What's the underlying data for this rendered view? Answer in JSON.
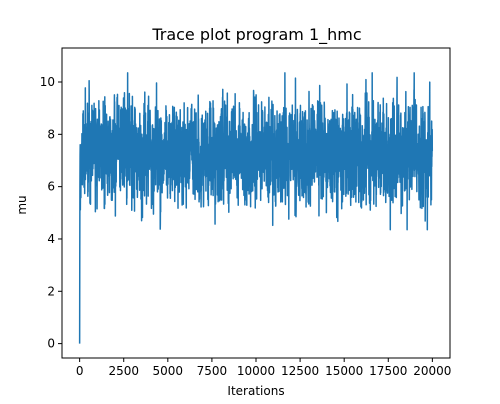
{
  "chart_data": {
    "type": "line",
    "title": "Trace plot program 1_hmc",
    "xlabel": "Iterations",
    "ylabel": "mu",
    "xlim": [
      -1000,
      21000
    ],
    "ylim": [
      -0.55,
      11.3
    ],
    "xticks": [
      0,
      2500,
      5000,
      7500,
      10000,
      12500,
      15000,
      17500,
      20000
    ],
    "xtick_labels": [
      "0",
      "2500",
      "5000",
      "7500",
      "10000",
      "12500",
      "15000",
      "17500",
      "20000"
    ],
    "yticks": [
      0,
      2,
      4,
      6,
      8,
      10
    ],
    "ytick_labels": [
      "0",
      "2",
      "4",
      "6",
      "8",
      "10"
    ],
    "grid": false,
    "legend": "none",
    "colors": {
      "series": "#1f77b4",
      "axes": "#000000"
    },
    "series": [
      {
        "name": "",
        "color": "#1f77b4",
        "iterations": 20000,
        "start_value": 0.0,
        "burn_in_values": [
          0.0,
          3.5,
          6.0,
          7.2,
          7.6
        ],
        "center": 7.3,
        "typical_range": [
          5.4,
          9.2
        ],
        "extreme_min": 3.75,
        "extreme_max": 10.95,
        "notable_points": [
          {
            "x": 200,
            "y": 5.5
          },
          {
            "x": 350,
            "y": 9.3
          },
          {
            "x": 450,
            "y": 10.35
          },
          {
            "x": 850,
            "y": 4.1
          },
          {
            "x": 1000,
            "y": 4.3
          },
          {
            "x": 2100,
            "y": 10.0
          },
          {
            "x": 2400,
            "y": 4.35
          },
          {
            "x": 3400,
            "y": 10.4
          },
          {
            "x": 3500,
            "y": 4.5
          },
          {
            "x": 4300,
            "y": 10.65
          },
          {
            "x": 5700,
            "y": 3.75
          },
          {
            "x": 6600,
            "y": 10.3
          },
          {
            "x": 7000,
            "y": 4.0
          },
          {
            "x": 8300,
            "y": 10.2
          },
          {
            "x": 9100,
            "y": 10.1
          },
          {
            "x": 11200,
            "y": 4.2
          },
          {
            "x": 12600,
            "y": 10.2
          },
          {
            "x": 14900,
            "y": 4.5
          },
          {
            "x": 16300,
            "y": 10.2
          },
          {
            "x": 17000,
            "y": 10.35
          },
          {
            "x": 17100,
            "y": 4.7
          },
          {
            "x": 18700,
            "y": 10.95
          },
          {
            "x": 18900,
            "y": 10.6
          },
          {
            "x": 19900,
            "y": 3.95
          }
        ]
      }
    ]
  }
}
